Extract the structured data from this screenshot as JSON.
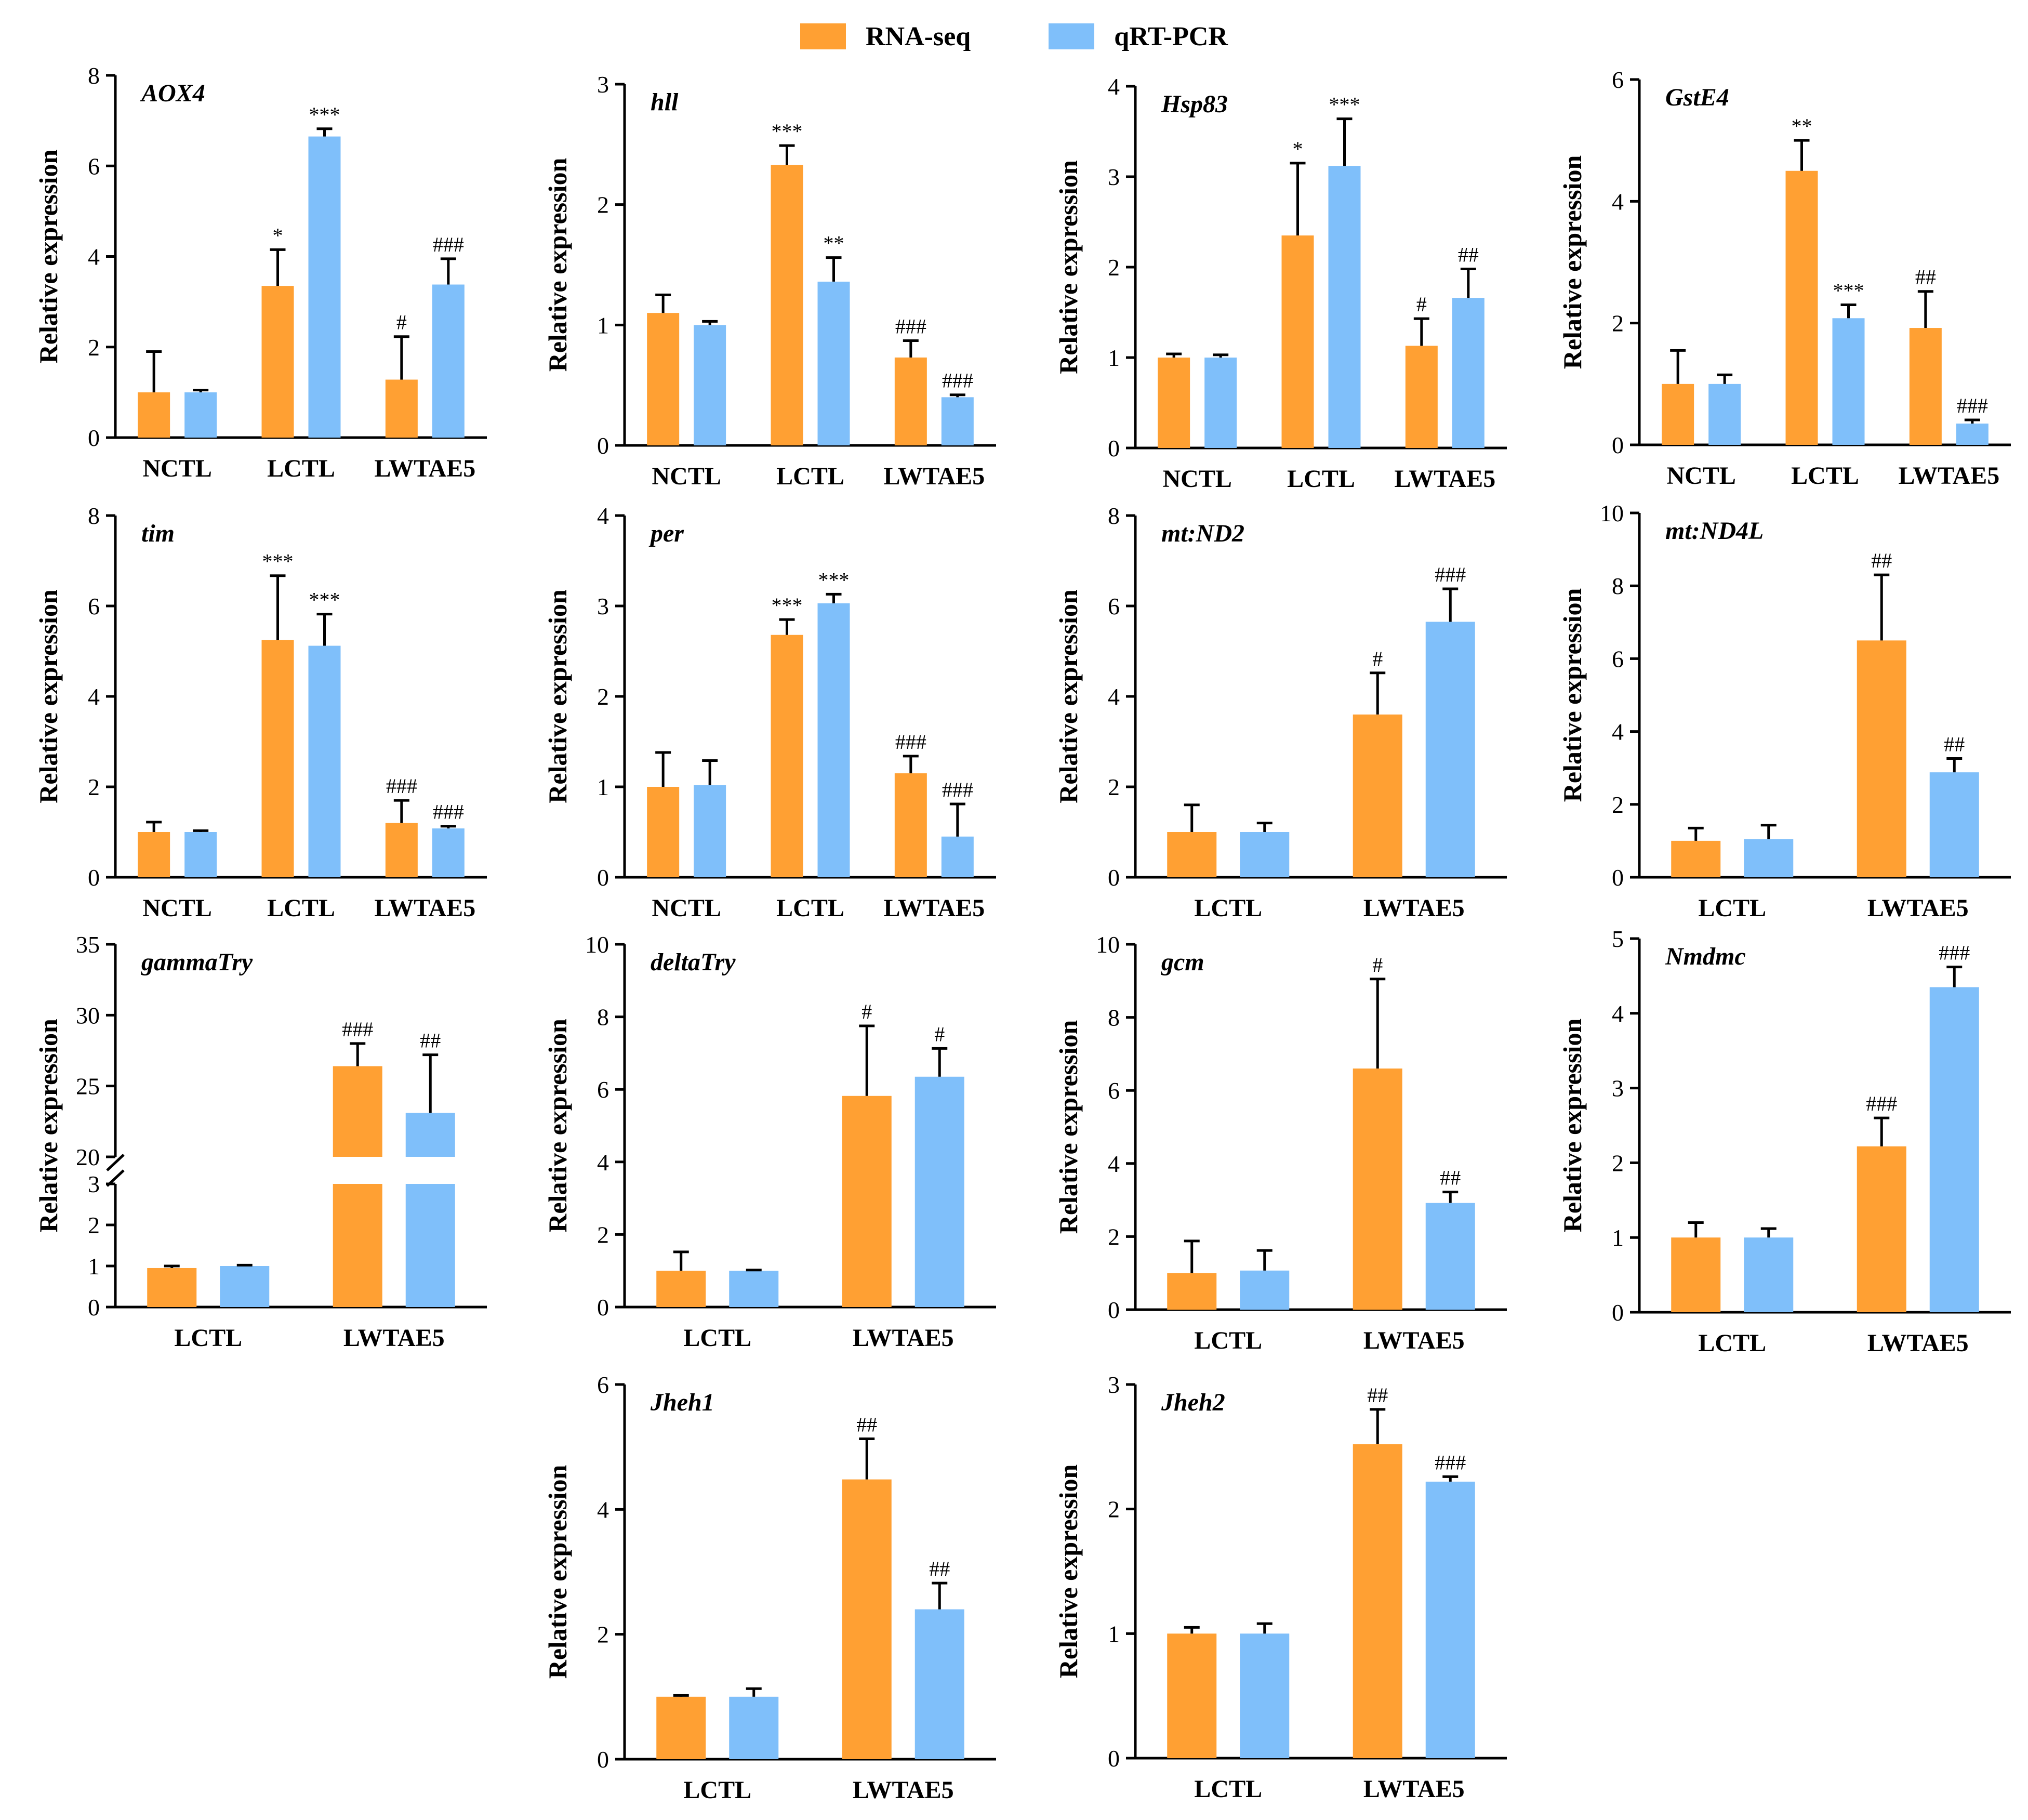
{
  "colors": {
    "rna": "#FFA033",
    "qpcr": "#7FBFFA"
  },
  "legend": {
    "rna": "RNA-seq",
    "qpcr": "qRT-PCR"
  },
  "chart_data": [
    {
      "type": "bar",
      "title": "AOX4",
      "ylabel": "Relative expression",
      "ylim": [
        0,
        8
      ],
      "yticks": [
        "0",
        "2",
        "4",
        "6",
        "8"
      ],
      "categories": [
        "NCTL",
        "LCTL",
        "LWTAE5"
      ],
      "series": [
        {
          "name": "RNA-seq",
          "values": [
            1.0,
            3.35,
            1.28
          ],
          "errors": [
            0.9,
            0.8,
            0.95
          ],
          "labels": [
            "",
            "*",
            "#"
          ]
        },
        {
          "name": "qRT-PCR",
          "values": [
            1.0,
            6.65,
            3.38
          ],
          "errors": [
            0.05,
            0.17,
            0.57
          ],
          "labels": [
            "",
            "***",
            "###"
          ]
        }
      ]
    },
    {
      "type": "bar",
      "title": "hll",
      "ylabel": "Relative expression",
      "ylim": [
        0,
        3
      ],
      "yticks": [
        "0",
        "1",
        "2",
        "3"
      ],
      "categories": [
        "NCTL",
        "LCTL",
        "LWTAE5"
      ],
      "series": [
        {
          "name": "RNA-seq",
          "values": [
            1.1,
            2.33,
            0.73
          ],
          "errors": [
            0.15,
            0.16,
            0.14
          ],
          "labels": [
            "",
            "***",
            "###"
          ]
        },
        {
          "name": "qRT-PCR",
          "values": [
            1.0,
            1.36,
            0.4
          ],
          "errors": [
            0.03,
            0.2,
            0.02
          ],
          "labels": [
            "",
            "**",
            "###"
          ]
        }
      ]
    },
    {
      "type": "bar",
      "title": "Hsp83",
      "ylabel": "Relative expression",
      "ylim": [
        0,
        4
      ],
      "yticks": [
        "0",
        "1",
        "2",
        "3",
        "4"
      ],
      "categories": [
        "NCTL",
        "LCTL",
        "LWTAE5"
      ],
      "series": [
        {
          "name": "RNA-seq",
          "values": [
            1.0,
            2.35,
            1.13
          ],
          "errors": [
            0.04,
            0.8,
            0.3
          ],
          "labels": [
            "",
            "*",
            "#"
          ]
        },
        {
          "name": "qRT-PCR",
          "values": [
            1.0,
            3.12,
            1.66
          ],
          "errors": [
            0.03,
            0.52,
            0.32
          ],
          "labels": [
            "",
            "***",
            "##"
          ]
        }
      ]
    },
    {
      "type": "bar",
      "title": "GstE4",
      "ylabel": "Relative expression",
      "ylim": [
        0,
        6
      ],
      "yticks": [
        "0",
        "2",
        "4",
        "6"
      ],
      "categories": [
        "NCTL",
        "LCTL",
        "LWTAE5"
      ],
      "series": [
        {
          "name": "RNA-seq",
          "values": [
            1.0,
            4.5,
            1.92
          ],
          "errors": [
            0.55,
            0.5,
            0.6
          ],
          "labels": [
            "",
            "**",
            "##"
          ]
        },
        {
          "name": "qRT-PCR",
          "values": [
            1.0,
            2.08,
            0.35
          ],
          "errors": [
            0.15,
            0.22,
            0.06
          ],
          "labels": [
            "",
            "***",
            "###"
          ]
        }
      ]
    },
    {
      "type": "bar",
      "title": "tim",
      "ylabel": "Relative expression",
      "ylim": [
        0,
        8
      ],
      "yticks": [
        "0",
        "2",
        "4",
        "6",
        "8"
      ],
      "categories": [
        "NCTL",
        "LCTL",
        "LWTAE5"
      ],
      "series": [
        {
          "name": "RNA-seq",
          "values": [
            1.0,
            5.25,
            1.2
          ],
          "errors": [
            0.22,
            1.42,
            0.5
          ],
          "labels": [
            "",
            "***",
            "###"
          ]
        },
        {
          "name": "qRT-PCR",
          "values": [
            1.0,
            5.12,
            1.08
          ],
          "errors": [
            0.03,
            0.7,
            0.05
          ],
          "labels": [
            "",
            "***",
            "###"
          ]
        }
      ]
    },
    {
      "type": "bar",
      "title": "per",
      "ylabel": "Relative expression",
      "ylim": [
        0,
        4
      ],
      "yticks": [
        "0",
        "1",
        "2",
        "3",
        "4"
      ],
      "categories": [
        "NCTL",
        "LCTL",
        "LWTAE5"
      ],
      "series": [
        {
          "name": "RNA-seq",
          "values": [
            1.0,
            2.68,
            1.15
          ],
          "errors": [
            0.38,
            0.17,
            0.19
          ],
          "labels": [
            "",
            "***",
            "###"
          ]
        },
        {
          "name": "qRT-PCR",
          "values": [
            1.02,
            3.03,
            0.45
          ],
          "errors": [
            0.27,
            0.1,
            0.36
          ],
          "labels": [
            "",
            "***",
            "###"
          ]
        }
      ]
    },
    {
      "type": "bar",
      "title": "mt:ND2",
      "ylabel": "Relative expression",
      "ylim": [
        0,
        8
      ],
      "yticks": [
        "0",
        "2",
        "4",
        "6",
        "8"
      ],
      "categories": [
        "LCTL",
        "LWTAE5"
      ],
      "series": [
        {
          "name": "RNA-seq",
          "values": [
            1.0,
            3.6
          ],
          "errors": [
            0.6,
            0.92
          ],
          "labels": [
            "",
            "#"
          ]
        },
        {
          "name": "qRT-PCR",
          "values": [
            1.0,
            5.65
          ],
          "errors": [
            0.2,
            0.73
          ],
          "labels": [
            "",
            "###"
          ]
        }
      ]
    },
    {
      "type": "bar",
      "title": "mt:ND4L",
      "ylabel": "Relative expression",
      "ylim": [
        0,
        10
      ],
      "yticks": [
        "0",
        "2",
        "4",
        "6",
        "8",
        "10"
      ],
      "categories": [
        "LCTL",
        "LWTAE5"
      ],
      "series": [
        {
          "name": "RNA-seq",
          "values": [
            1.0,
            6.5
          ],
          "errors": [
            0.35,
            1.8
          ],
          "labels": [
            "",
            "##"
          ]
        },
        {
          "name": "qRT-PCR",
          "values": [
            1.05,
            2.88
          ],
          "errors": [
            0.38,
            0.38
          ],
          "labels": [
            "",
            "##"
          ]
        }
      ]
    },
    {
      "type": "bar",
      "title": "gammaTry",
      "ylabel": "Relative expression",
      "ylim": [
        0,
        35
      ],
      "ybreak": [
        3,
        20
      ],
      "yticks": [
        "0",
        "1",
        "2",
        "3",
        "20",
        "25",
        "30",
        "35"
      ],
      "categories": [
        "LCTL",
        "LWTAE5"
      ],
      "series": [
        {
          "name": "RNA-seq",
          "values": [
            0.95,
            26.4
          ],
          "errors": [
            0.05,
            1.6
          ],
          "labels": [
            "",
            "###"
          ]
        },
        {
          "name": "qRT-PCR",
          "values": [
            1.0,
            23.1
          ],
          "errors": [
            0.02,
            4.1
          ],
          "labels": [
            "",
            "##"
          ]
        }
      ]
    },
    {
      "type": "bar",
      "title": "deltaTry",
      "ylabel": "Relative expression",
      "ylim": [
        0,
        10
      ],
      "yticks": [
        "0",
        "2",
        "4",
        "6",
        "8",
        "10"
      ],
      "categories": [
        "LCTL",
        "LWTAE5"
      ],
      "series": [
        {
          "name": "RNA-seq",
          "values": [
            1.0,
            5.82
          ],
          "errors": [
            0.52,
            1.93
          ],
          "labels": [
            "",
            "#"
          ]
        },
        {
          "name": "qRT-PCR",
          "values": [
            1.0,
            6.35
          ],
          "errors": [
            0.02,
            0.78
          ],
          "labels": [
            "",
            "#"
          ]
        }
      ]
    },
    {
      "type": "bar",
      "title": "gcm",
      "ylabel": "Relative expression",
      "ylim": [
        0,
        10
      ],
      "yticks": [
        "0",
        "2",
        "4",
        "6",
        "8",
        "10"
      ],
      "categories": [
        "LCTL",
        "LWTAE5"
      ],
      "series": [
        {
          "name": "RNA-seq",
          "values": [
            1.0,
            6.6
          ],
          "errors": [
            0.88,
            2.45
          ],
          "labels": [
            "",
            "#"
          ]
        },
        {
          "name": "qRT-PCR",
          "values": [
            1.07,
            2.92
          ],
          "errors": [
            0.55,
            0.3
          ],
          "labels": [
            "",
            "##"
          ]
        }
      ]
    },
    {
      "type": "bar",
      "title": "Nmdmc",
      "ylabel": "Relative expression",
      "ylim": [
        0,
        5
      ],
      "yticks": [
        "0",
        "1",
        "2",
        "3",
        "4",
        "5"
      ],
      "categories": [
        "LCTL",
        "LWTAE5"
      ],
      "series": [
        {
          "name": "RNA-seq",
          "values": [
            1.0,
            2.22
          ],
          "errors": [
            0.2,
            0.38
          ],
          "labels": [
            "",
            "###"
          ]
        },
        {
          "name": "qRT-PCR",
          "values": [
            1.0,
            4.35
          ],
          "errors": [
            0.12,
            0.27
          ],
          "labels": [
            "",
            "###"
          ]
        }
      ]
    },
    {
      "type": "bar",
      "title": "Jheh1",
      "ylabel": "Relative expression",
      "ylim": [
        0,
        6
      ],
      "yticks": [
        "0",
        "2",
        "4",
        "6"
      ],
      "categories": [
        "LCTL",
        "LWTAE5"
      ],
      "series": [
        {
          "name": "RNA-seq",
          "values": [
            1.0,
            4.48
          ],
          "errors": [
            0.02,
            0.65
          ],
          "labels": [
            "",
            "##"
          ]
        },
        {
          "name": "qRT-PCR",
          "values": [
            1.0,
            2.4
          ],
          "errors": [
            0.13,
            0.42
          ],
          "labels": [
            "",
            "##"
          ]
        }
      ]
    },
    {
      "type": "bar",
      "title": "Jheh2",
      "ylabel": "Relative expression",
      "ylim": [
        0,
        3
      ],
      "yticks": [
        "0",
        "1",
        "2",
        "3"
      ],
      "categories": [
        "LCTL",
        "LWTAE5"
      ],
      "series": [
        {
          "name": "RNA-seq",
          "values": [
            1.0,
            2.52
          ],
          "errors": [
            0.05,
            0.28
          ],
          "labels": [
            "",
            "##"
          ]
        },
        {
          "name": "qRT-PCR",
          "values": [
            1.0,
            2.22
          ],
          "errors": [
            0.08,
            0.04
          ],
          "labels": [
            "",
            "###"
          ]
        }
      ]
    }
  ]
}
